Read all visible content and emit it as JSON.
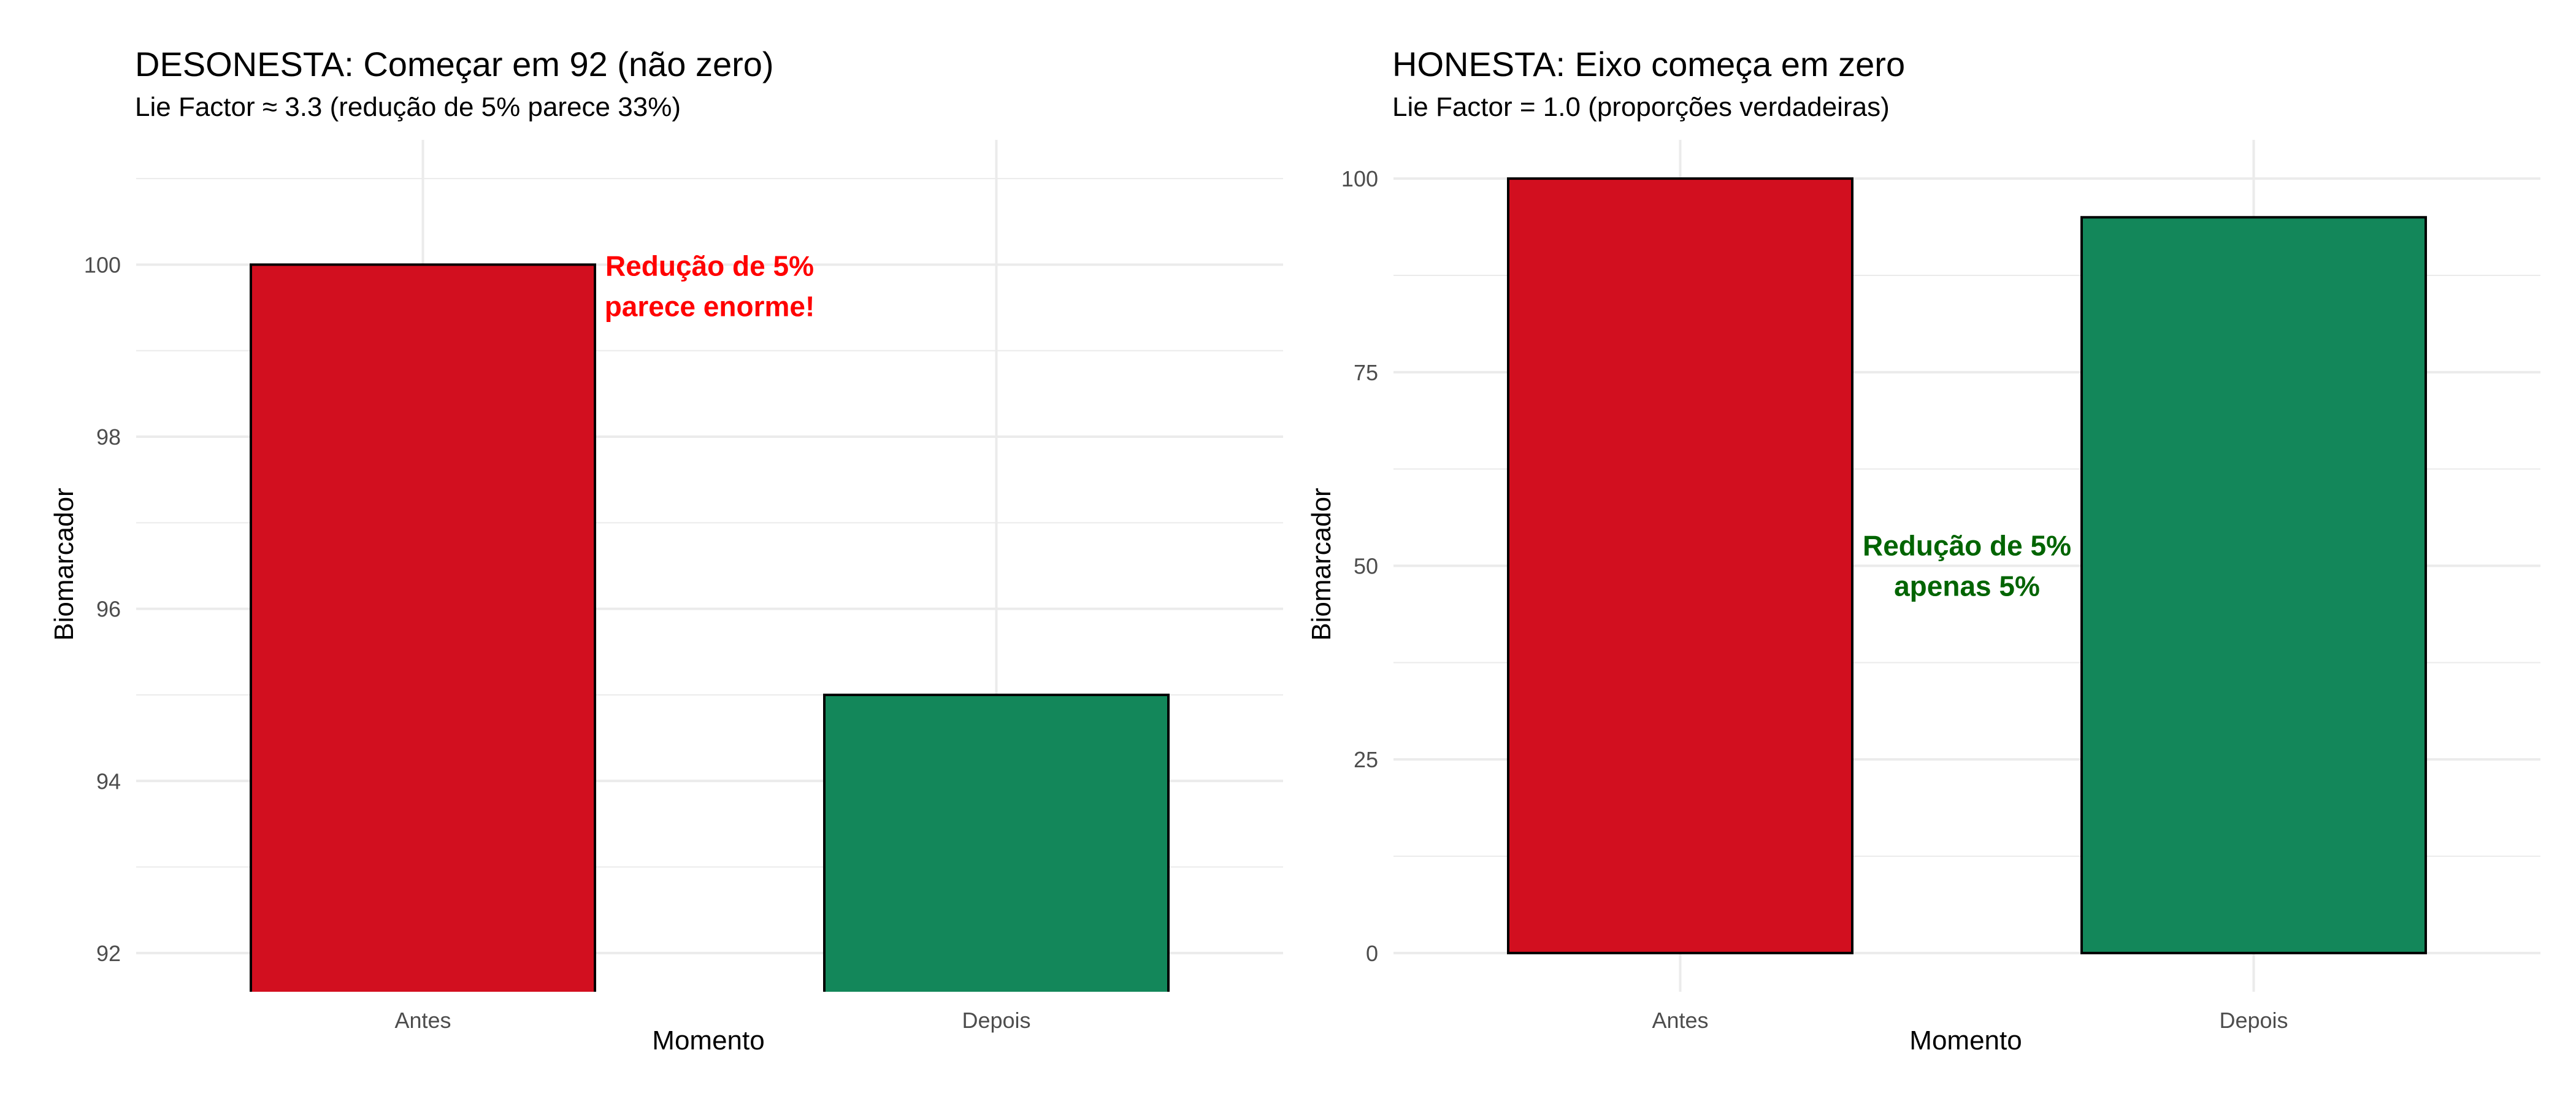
{
  "chart_data": [
    {
      "type": "bar",
      "title": "DESONESTA: Começar em 92 (não zero)",
      "subtitle": "Lie Factor ≈ 3.3 (redução de 5% parece 33%)",
      "xlabel": "Momento",
      "ylabel": "Biomarcador",
      "categories": [
        "Antes",
        "Depois"
      ],
      "values": [
        100,
        95
      ],
      "colors": [
        "#D20F1F",
        "#13875A"
      ],
      "ylim": [
        91.55,
        101.45
      ],
      "yticks": [
        92,
        94,
        96,
        98,
        100
      ],
      "grid": true,
      "legend": "none",
      "annotation": {
        "lines": [
          "Redução de 5%",
          "parece enorme!"
        ],
        "color": "#FF0000",
        "x": 1.5,
        "y": 99.75
      }
    },
    {
      "type": "bar",
      "title": "HONESTA: Eixo começa em zero",
      "subtitle": "Lie Factor = 1.0 (proporções verdadeiras)",
      "xlabel": "Momento",
      "ylabel": "Biomarcador",
      "categories": [
        "Antes",
        "Depois"
      ],
      "values": [
        100,
        95
      ],
      "colors": [
        "#D20F1F",
        "#13875A"
      ],
      "ylim": [
        -5,
        105
      ],
      "yticks": [
        0,
        25,
        50,
        75,
        100
      ],
      "grid": true,
      "legend": "none",
      "annotation": {
        "lines": [
          "Redução de 5%",
          "apenas 5%"
        ],
        "color": "#006400",
        "x": 1.5,
        "y": 50
      }
    }
  ]
}
